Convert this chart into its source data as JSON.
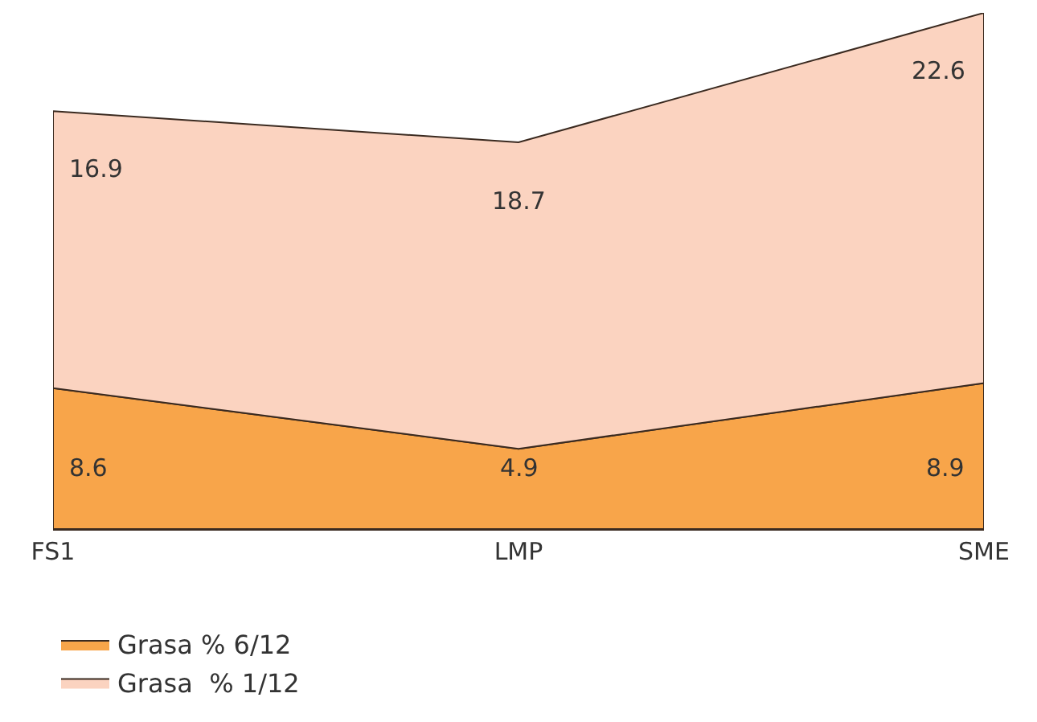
{
  "chart_data": {
    "type": "area",
    "stacked": true,
    "data_labels": true,
    "legend": "bottom",
    "categories": [
      "FS1",
      "LMP",
      "SME"
    ],
    "series": [
      {
        "name": "Grasa % 6/12",
        "color": "#f8a54a",
        "values": [
          8.6,
          4.9,
          8.9
        ]
      },
      {
        "name": "Grasa  % 1/12",
        "color": "#fbd3c0",
        "values": [
          16.9,
          18.7,
          22.6
        ]
      }
    ]
  }
}
